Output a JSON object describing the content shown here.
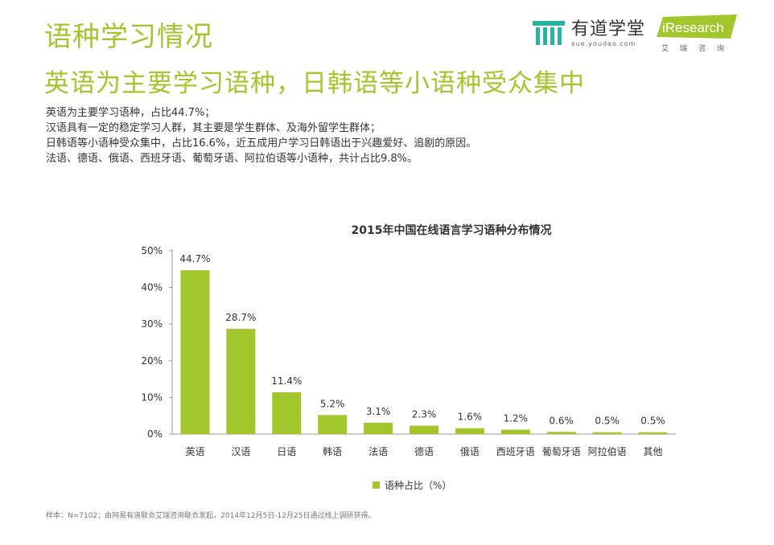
{
  "page": {
    "section_title": "语种学习情况",
    "headline": "英语为主要学习语种，日韩语等小语种受众集中",
    "summary": [
      "英语为主要学习语种，占比44.7%；",
      "汉语具有一定的稳定学习人群，其主要是学生群体、及海外留学生群体；",
      "日韩语等小语种受众集中，占比16.6%，近五成用户学习日韩语出于兴趣爱好、追剧的原因。",
      "法语、德语、俄语、西班牙语、葡萄牙语、阿拉伯语等小语种，共计占比9.8%。"
    ],
    "footnote": "样本：N=7102；由网易有道联合艾瑞咨询联合发起，2014年12月5日-12月25日通过线上调研获得。"
  },
  "logos": {
    "youdao": {
      "name": "有道学堂",
      "url": "xue.youdao.com",
      "icon": "youdao-logo-icon",
      "color": "#2ab3a0"
    },
    "iresearch": {
      "badge": "iResearch",
      "subtitle": "艾瑞咨询",
      "color": "#a3c62c"
    }
  },
  "chart_data": {
    "type": "bar",
    "title": "2015年中国在线语言学习语种分布情况",
    "categories": [
      "英语",
      "汉语",
      "日语",
      "韩语",
      "法语",
      "德语",
      "俄语",
      "西班牙语",
      "葡萄牙语",
      "阿拉伯语",
      "其他"
    ],
    "series": [
      {
        "name": "语种占比（%）",
        "values": [
          44.7,
          28.7,
          11.4,
          5.2,
          3.1,
          2.3,
          1.6,
          1.2,
          0.6,
          0.5,
          0.5
        ],
        "color": "#a3c62c"
      }
    ],
    "data_labels": [
      "44.7%",
      "28.7%",
      "11.4%",
      "5.2%",
      "3.1%",
      "2.3%",
      "1.6%",
      "1.2%",
      "0.6%",
      "0.5%",
      "0.5%"
    ],
    "y_ticks": [
      "0%",
      "10%",
      "20%",
      "30%",
      "40%",
      "50%"
    ],
    "ylim": [
      0,
      50
    ],
    "grid": false,
    "legend_position": "bottom"
  }
}
